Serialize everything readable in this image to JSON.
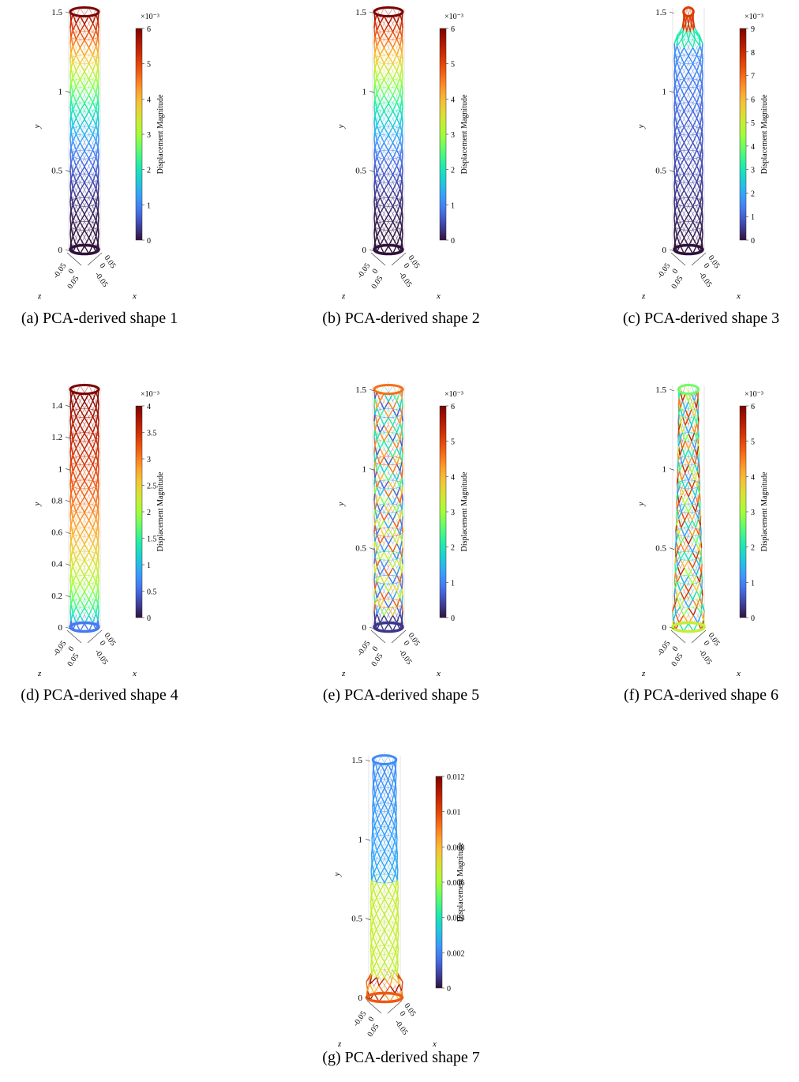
{
  "figure": {
    "panels": [
      {
        "caption": "(a) PCA-derived shape 1",
        "y_axis_label": "y",
        "x_axis_label": "x",
        "z_axis_label": "z",
        "colorbar_label": "Displacement Magnitude",
        "colorbar_exponent": "×10⁻³",
        "colorbar_ticks": [
          "0",
          "1",
          "2",
          "3",
          "4",
          "5",
          "6"
        ],
        "y_ticks": [
          "0",
          "0.5",
          "1",
          "1.5"
        ],
        "base_ticks": [
          "-0.05",
          "0",
          "0.05",
          "0.05",
          "0",
          "-0.05"
        ],
        "chart_data": {
          "type": "other",
          "colorbar_range": [
            0,
            6
          ],
          "colorbar_scale": 0.001,
          "y_range": [
            0,
            1.5
          ]
        }
      },
      {
        "caption": "(b) PCA-derived shape 2",
        "y_axis_label": "y",
        "x_axis_label": "x",
        "z_axis_label": "z",
        "colorbar_label": "Displacement Magnitude",
        "colorbar_exponent": "×10⁻³",
        "colorbar_ticks": [
          "0",
          "1",
          "2",
          "3",
          "4",
          "5",
          "6"
        ],
        "y_ticks": [
          "0",
          "0.5",
          "1",
          "1.5"
        ],
        "base_ticks": [
          "-0.05",
          "0",
          "0.05",
          "0.05",
          "0",
          "-0.05"
        ],
        "chart_data": {
          "type": "other",
          "colorbar_range": [
            0,
            6
          ],
          "colorbar_scale": 0.001,
          "y_range": [
            0,
            1.5
          ]
        }
      },
      {
        "caption": "(c) PCA-derived shape 3",
        "y_axis_label": "y",
        "x_axis_label": "x",
        "z_axis_label": "z",
        "colorbar_label": "Displacement Magnitude",
        "colorbar_exponent": "×10⁻³",
        "colorbar_ticks": [
          "0",
          "1",
          "2",
          "3",
          "4",
          "5",
          "6",
          "7",
          "8",
          "9"
        ],
        "y_ticks": [
          "0",
          "0.5",
          "1",
          "1.5"
        ],
        "base_ticks": [
          "-0.05",
          "0",
          "0.05",
          "0.05",
          "0",
          "-0.05"
        ],
        "chart_data": {
          "type": "other",
          "colorbar_range": [
            0,
            9
          ],
          "colorbar_scale": 0.001,
          "y_range": [
            0,
            1.5
          ]
        }
      },
      {
        "caption": "(d) PCA-derived shape 4",
        "y_axis_label": "y",
        "x_axis_label": "x",
        "z_axis_label": "z",
        "colorbar_label": "Displacement Magnitude",
        "colorbar_exponent": "×10⁻³",
        "colorbar_ticks": [
          "0",
          "0.5",
          "1",
          "1.5",
          "2",
          "2.5",
          "3",
          "3.5",
          "4"
        ],
        "y_ticks": [
          "0",
          "0.2",
          "0.4",
          "0.6",
          "0.8",
          "1",
          "1.2",
          "1.4"
        ],
        "base_ticks": [
          "-0.05",
          "0",
          "0.05",
          "0.05",
          "0",
          "-0.05"
        ],
        "chart_data": {
          "type": "other",
          "colorbar_range": [
            0,
            4
          ],
          "colorbar_scale": 0.001,
          "y_range": [
            0,
            1.5
          ]
        }
      },
      {
        "caption": "(e) PCA-derived shape 5",
        "y_axis_label": "y",
        "x_axis_label": "x",
        "z_axis_label": "z",
        "colorbar_label": "Displacement Magnitude",
        "colorbar_exponent": "×10⁻³",
        "colorbar_ticks": [
          "0",
          "1",
          "2",
          "3",
          "4",
          "5",
          "6"
        ],
        "y_ticks": [
          "0",
          "0.5",
          "1",
          "1.5"
        ],
        "base_ticks": [
          "-0.05",
          "0",
          "0.05",
          "0.05",
          "0",
          "-0.05"
        ],
        "chart_data": {
          "type": "other",
          "colorbar_range": [
            0,
            6
          ],
          "colorbar_scale": 0.001,
          "y_range": [
            0,
            1.5
          ]
        }
      },
      {
        "caption": "(f) PCA-derived shape 6",
        "y_axis_label": "y",
        "x_axis_label": "x",
        "z_axis_label": "z",
        "colorbar_label": "Displacement Magnitude",
        "colorbar_exponent": "×10⁻³",
        "colorbar_ticks": [
          "0",
          "1",
          "2",
          "3",
          "4",
          "5",
          "6"
        ],
        "y_ticks": [
          "0",
          "0.5",
          "1",
          "1.5"
        ],
        "base_ticks": [
          "-0.05",
          "0",
          "0.05",
          "0.05",
          "0",
          "-0.05"
        ],
        "chart_data": {
          "type": "other",
          "colorbar_range": [
            0,
            6
          ],
          "colorbar_scale": 0.001,
          "y_range": [
            0,
            1.5
          ]
        }
      },
      {
        "caption": "(g) PCA-derived shape 7",
        "y_axis_label": "y",
        "x_axis_label": "x",
        "z_axis_label": "z",
        "colorbar_label": "Displacement Magnitude",
        "colorbar_exponent": "",
        "colorbar_ticks": [
          "0",
          "0.002",
          "0.004",
          "0.006",
          "0.008",
          "0.01",
          "0.012"
        ],
        "y_ticks": [
          "0",
          "0.5",
          "1",
          "1.5"
        ],
        "base_ticks": [
          "-0.05",
          "0",
          "0.05",
          "0.05",
          "0",
          "-0.05"
        ],
        "chart_data": {
          "type": "other",
          "colorbar_range": [
            0,
            0.012
          ],
          "colorbar_scale": 1,
          "y_range": [
            0,
            1.5
          ]
        }
      }
    ],
    "colormap": [
      "#30123b",
      "#4145ab",
      "#4675ed",
      "#39a2fc",
      "#1bcfd4",
      "#24eca6",
      "#61fc6c",
      "#a4fc3b",
      "#d1e834",
      "#f3c63a",
      "#fe9b2d",
      "#f36315",
      "#d93806",
      "#b11901",
      "#7a0402"
    ]
  }
}
